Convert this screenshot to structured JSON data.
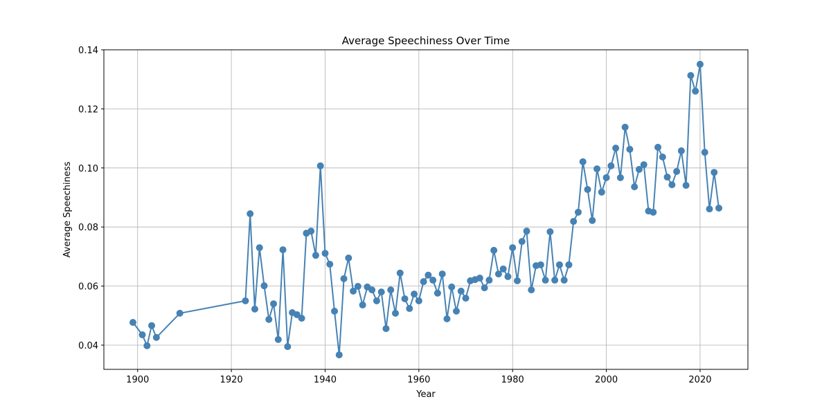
{
  "chart_data": {
    "type": "line",
    "title": "Average Speechiness Over Time",
    "xlabel": "Year",
    "ylabel": "Average Speechiness",
    "xlim": [
      1892.8,
      2030.2
    ],
    "ylim": [
      0.0318,
      0.14
    ],
    "xticks": [
      1900,
      1920,
      1940,
      1960,
      1980,
      2000,
      2020
    ],
    "yticks": [
      0.04,
      0.06,
      0.08,
      0.1,
      0.12,
      0.14
    ],
    "ytick_labels": [
      "0.04",
      "0.06",
      "0.08",
      "0.10",
      "0.12",
      "0.14"
    ],
    "grid": true,
    "color": "#4682b4",
    "marker": "circle",
    "x": [
      1899,
      1901,
      1902,
      1903,
      1904,
      1909,
      1923,
      1924,
      1925,
      1926,
      1927,
      1928,
      1929,
      1930,
      1931,
      1932,
      1933,
      1934,
      1935,
      1936,
      1937,
      1938,
      1939,
      1940,
      1941,
      1942,
      1943,
      1944,
      1945,
      1946,
      1947,
      1948,
      1949,
      1950,
      1951,
      1952,
      1953,
      1954,
      1955,
      1956,
      1957,
      1958,
      1959,
      1960,
      1961,
      1962,
      1963,
      1964,
      1965,
      1966,
      1967,
      1968,
      1969,
      1970,
      1971,
      1972,
      1973,
      1974,
      1975,
      1976,
      1977,
      1978,
      1979,
      1980,
      1981,
      1982,
      1983,
      1984,
      1985,
      1986,
      1987,
      1988,
      1989,
      1990,
      1991,
      1992,
      1993,
      1994,
      1995,
      1996,
      1997,
      1998,
      1999,
      2000,
      2001,
      2002,
      2003,
      2004,
      2005,
      2006,
      2007,
      2008,
      2009,
      2010,
      2011,
      2012,
      2013,
      2014,
      2015,
      2016,
      2017,
      2018,
      2019,
      2020,
      2021,
      2022,
      2023,
      2024
    ],
    "y": [
      0.0477,
      0.0435,
      0.0398,
      0.0466,
      0.0426,
      0.0508,
      0.055,
      0.0845,
      0.0522,
      0.073,
      0.0601,
      0.0487,
      0.054,
      0.0419,
      0.0723,
      0.0395,
      0.051,
      0.0503,
      0.0491,
      0.0779,
      0.0786,
      0.0704,
      0.1007,
      0.0711,
      0.0674,
      0.0515,
      0.0367,
      0.0625,
      0.0695,
      0.0583,
      0.0599,
      0.0536,
      0.0597,
      0.0587,
      0.055,
      0.058,
      0.0456,
      0.0587,
      0.0508,
      0.0644,
      0.0557,
      0.0524,
      0.0573,
      0.055,
      0.0615,
      0.0637,
      0.062,
      0.0576,
      0.0641,
      0.0489,
      0.0597,
      0.0515,
      0.0583,
      0.0559,
      0.0618,
      0.0622,
      0.0627,
      0.0594,
      0.062,
      0.0721,
      0.0641,
      0.0658,
      0.0632,
      0.073,
      0.0618,
      0.0751,
      0.0786,
      0.0587,
      0.0669,
      0.0672,
      0.062,
      0.0784,
      0.062,
      0.0672,
      0.062,
      0.0672,
      0.0819,
      0.085,
      0.1021,
      0.0927,
      0.0822,
      0.0997,
      0.0918,
      0.0967,
      0.1007,
      0.1067,
      0.0967,
      0.1138,
      0.1063,
      0.0936,
      0.0995,
      0.1011,
      0.0854,
      0.085,
      0.107,
      0.1037,
      0.0969,
      0.0943,
      0.0988,
      0.1058,
      0.0941,
      0.1313,
      0.126,
      0.1351,
      0.1053,
      0.0861,
      0.0985,
      0.0864
    ]
  }
}
